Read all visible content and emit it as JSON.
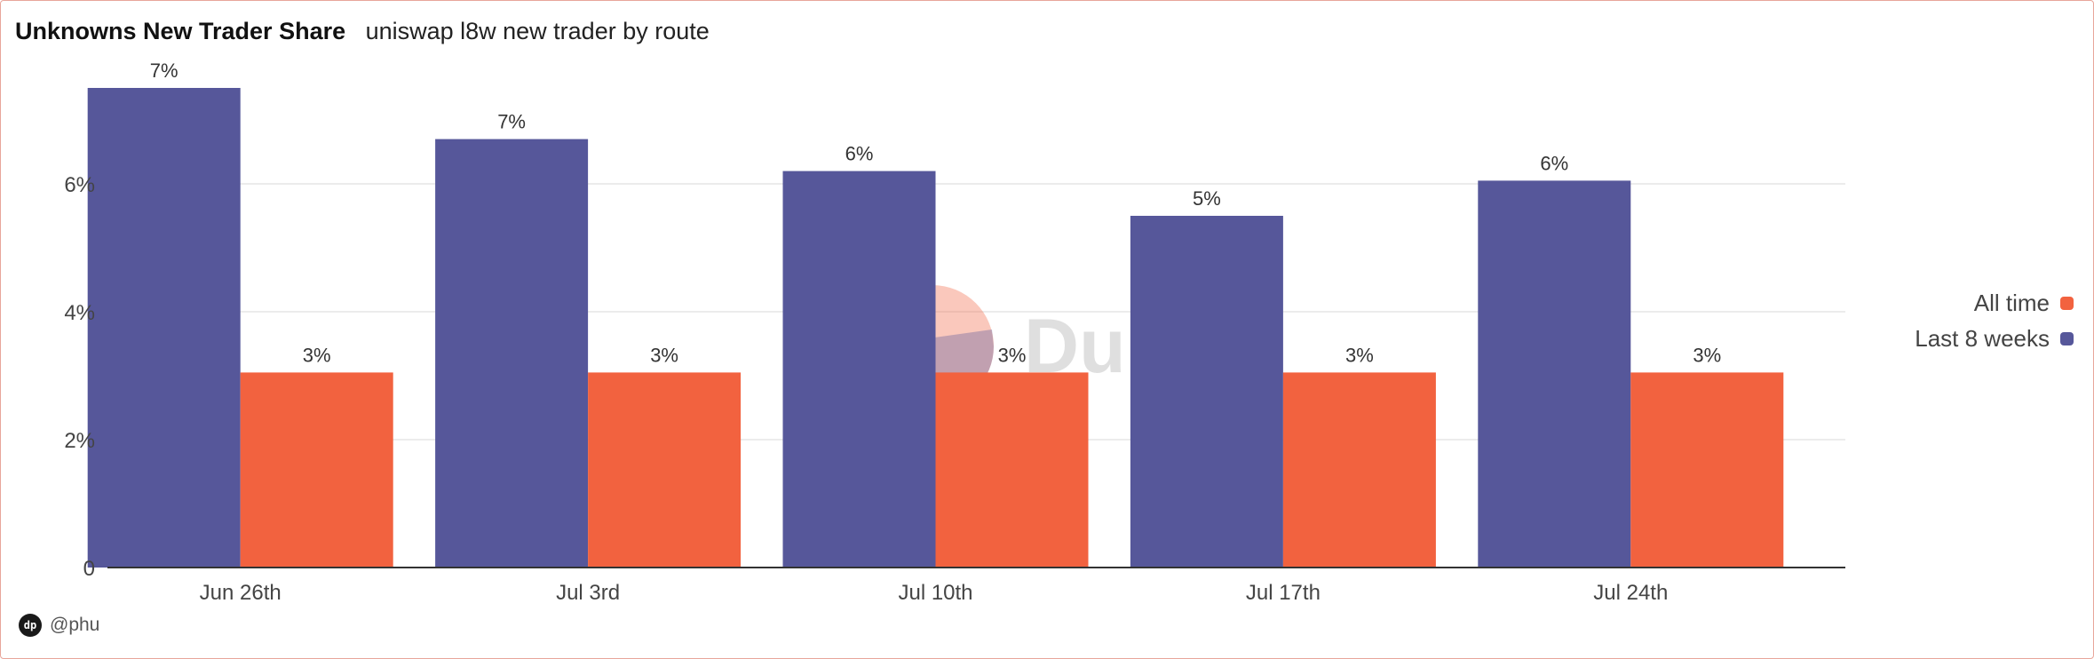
{
  "header": {
    "title": "Unknowns New Trader Share",
    "subtitle": "uniswap l8w new trader by route"
  },
  "footer": {
    "author": "@phu",
    "avatar_icon": "dune-avatar-icon"
  },
  "watermark": {
    "text": "Dune"
  },
  "colors": {
    "last_8_weeks": "#56579a",
    "all_time": "#f2623f",
    "axis": "#333333",
    "grid": "#e6e6e6",
    "border": "#e8a59a"
  },
  "chart_data": {
    "type": "bar",
    "categories": [
      "Jun 26th",
      "Jul 3rd",
      "Jul 10th",
      "Jul 17th",
      "Jul 24th"
    ],
    "series": [
      {
        "name": "Last 8 weeks",
        "values": [
          7.5,
          6.7,
          6.2,
          5.5,
          6.05
        ],
        "labels": [
          "7%",
          "7%",
          "6%",
          "5%",
          "6%"
        ],
        "color": "#56579a"
      },
      {
        "name": "All time",
        "values": [
          3.05,
          3.05,
          3.05,
          3.05,
          3.05
        ],
        "labels": [
          "3%",
          "3%",
          "3%",
          "3%",
          "3%"
        ],
        "color": "#f2623f"
      }
    ],
    "yticks": [
      {
        "value": 0,
        "label": "0"
      },
      {
        "value": 2,
        "label": "2%"
      },
      {
        "value": 4,
        "label": "4%"
      },
      {
        "value": 6,
        "label": "6%"
      }
    ],
    "ylim": [
      0,
      8
    ],
    "grid": true,
    "legend_position": "right",
    "legend_entries": [
      "All time",
      "Last 8 weeks"
    ]
  }
}
